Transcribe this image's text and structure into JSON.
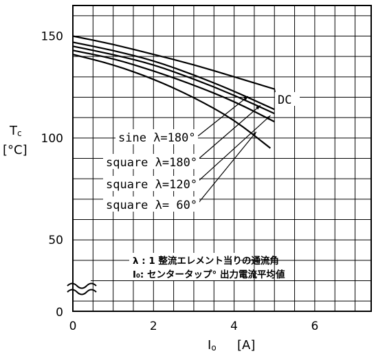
{
  "chart_data": {
    "type": "line",
    "ylabel_main": "T",
    "ylabel_sub": "c",
    "ylabel_unit": "[°C]",
    "xlabel_main": "I",
    "xlabel_sub": "o",
    "xlabel_unit": "[A]",
    "xlim": [
      0,
      7.4
    ],
    "ylim": [
      15,
      165
    ],
    "grid": true,
    "x_ticks": [
      {
        "value": 0,
        "label": "0"
      },
      {
        "value": 2,
        "label": "2"
      },
      {
        "value": 4,
        "label": "4"
      },
      {
        "value": 6,
        "label": "6"
      }
    ],
    "y_ticks": [
      {
        "value": 50,
        "label": "50"
      },
      {
        "value": 100,
        "label": "100"
      },
      {
        "value": 150,
        "label": "150"
      }
    ],
    "y_origin_label": "0",
    "y_axis_break": true,
    "series": [
      {
        "name": "DC",
        "x": [
          0,
          1,
          2,
          3,
          4,
          5
        ],
        "y": [
          150,
          146,
          141,
          136,
          130,
          124
        ]
      },
      {
        "name": "sine λ=180°",
        "x": [
          0,
          1,
          2,
          3,
          4,
          5
        ],
        "y": [
          147,
          143,
          138,
          131,
          123,
          114
        ]
      },
      {
        "name": "square λ=180°",
        "x": [
          0,
          1,
          2,
          3,
          4,
          5
        ],
        "y": [
          145,
          141,
          136,
          129,
          121,
          112
        ]
      },
      {
        "name": "square λ=120°",
        "x": [
          0,
          1,
          2,
          3,
          4,
          5
        ],
        "y": [
          143,
          139,
          133,
          126,
          118,
          108
        ]
      },
      {
        "name": "square λ= 60°",
        "x": [
          0,
          1,
          2,
          3,
          4,
          4.9
        ],
        "y": [
          141,
          136,
          129,
          120,
          109,
          95
        ]
      }
    ],
    "annotations": [
      "λ : 1 整流エレメント当りの通流角",
      "I₀: センタータップ° 出力電流平均値"
    ]
  }
}
